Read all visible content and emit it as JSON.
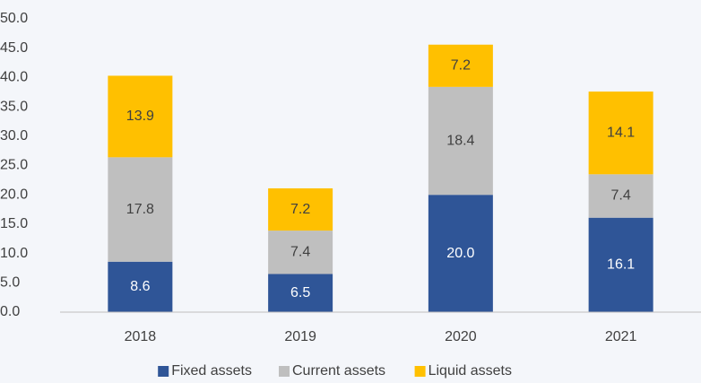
{
  "chart_data": {
    "type": "stacked_bar",
    "categories": [
      "2018",
      "2019",
      "2020",
      "2021"
    ],
    "series": [
      {
        "name": "Fixed assets",
        "color": "#2f5597",
        "values": [
          8.6,
          6.5,
          20.0,
          16.1
        ],
        "value_labels": [
          "8.6",
          "6.5",
          "20.0",
          "16.1"
        ]
      },
      {
        "name": "Current assets",
        "color": "#bfbfbf",
        "values": [
          17.8,
          7.4,
          18.4,
          7.4
        ],
        "value_labels": [
          "17.8",
          "7.4",
          "18.4",
          "7.4"
        ]
      },
      {
        "name": "Liquid assets",
        "color": "#ffc000",
        "values": [
          13.9,
          7.2,
          7.2,
          14.1
        ],
        "value_labels": [
          "13.9",
          "7.2",
          "7.2",
          "14.1"
        ]
      }
    ],
    "ylim": [
      0,
      50
    ],
    "yticks": [
      {
        "value": 0,
        "label": "0.0"
      },
      {
        "value": 5,
        "label": "5.0"
      },
      {
        "value": 10,
        "label": "10.0"
      },
      {
        "value": 15,
        "label": "15.0"
      },
      {
        "value": 20,
        "label": "20.0"
      },
      {
        "value": 25,
        "label": "25.0"
      },
      {
        "value": 30,
        "label": "30.0"
      },
      {
        "value": 35,
        "label": "35.0"
      },
      {
        "value": 40,
        "label": "40.0"
      },
      {
        "value": 45,
        "label": "45.0"
      },
      {
        "value": 50,
        "label": "50.0"
      }
    ],
    "legend": "bottom",
    "grid": false
  }
}
